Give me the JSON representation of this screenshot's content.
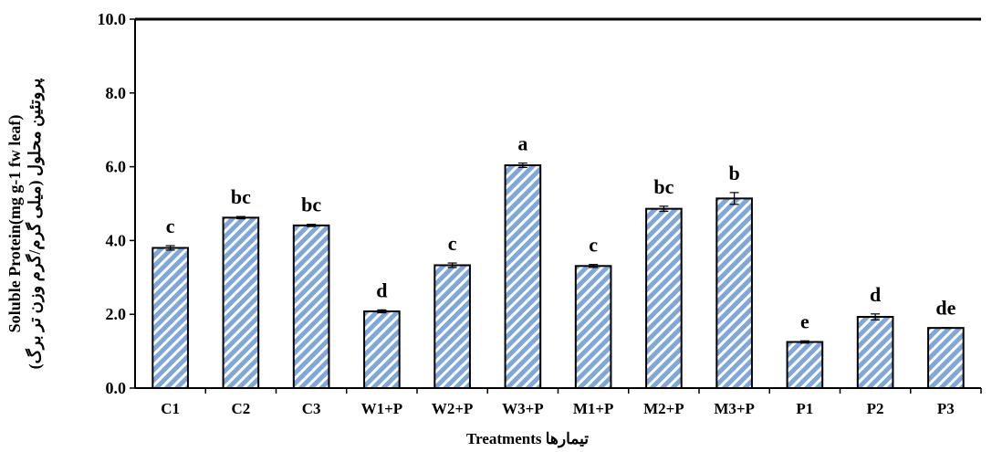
{
  "chart_data": {
    "type": "bar",
    "categories": [
      "C1",
      "C2",
      "C3",
      "W1+P",
      "W2+P",
      "W3+P",
      "M1+P",
      "M2+P",
      "M3+P",
      "P1",
      "P2",
      "P3"
    ],
    "values": [
      3.8,
      4.62,
      4.41,
      2.08,
      3.33,
      6.04,
      3.31,
      4.86,
      5.14,
      1.25,
      1.93,
      1.63
    ],
    "errors": [
      0.06,
      0.03,
      0.03,
      0.04,
      0.06,
      0.06,
      0.04,
      0.07,
      0.16,
      0.03,
      0.08,
      0.01
    ],
    "letters": [
      "c",
      "bc",
      "bc",
      "d",
      "c",
      "a",
      "c",
      "bc",
      "b",
      "e",
      "d",
      "de"
    ],
    "title": "",
    "xlabel": "Treatments تیمارها",
    "ylabel_line1": "Soluble Protein(mg g-1 fw leaf)",
    "ylabel_line2": "پروتئین محلول (میلی گرم/گرم وزن تر برگ)",
    "ylim": [
      0,
      10
    ],
    "yticks": [
      "0.0",
      "2.0",
      "4.0",
      "6.0",
      "8.0",
      "10.0"
    ],
    "ytick_values": [
      0,
      2,
      4,
      6,
      8,
      10
    ],
    "grid": false,
    "legend": "none",
    "bar_fill_color": "#7fa7d8",
    "bar_stripe_color": "#ffffff",
    "bar_edge_color": "#000000"
  }
}
